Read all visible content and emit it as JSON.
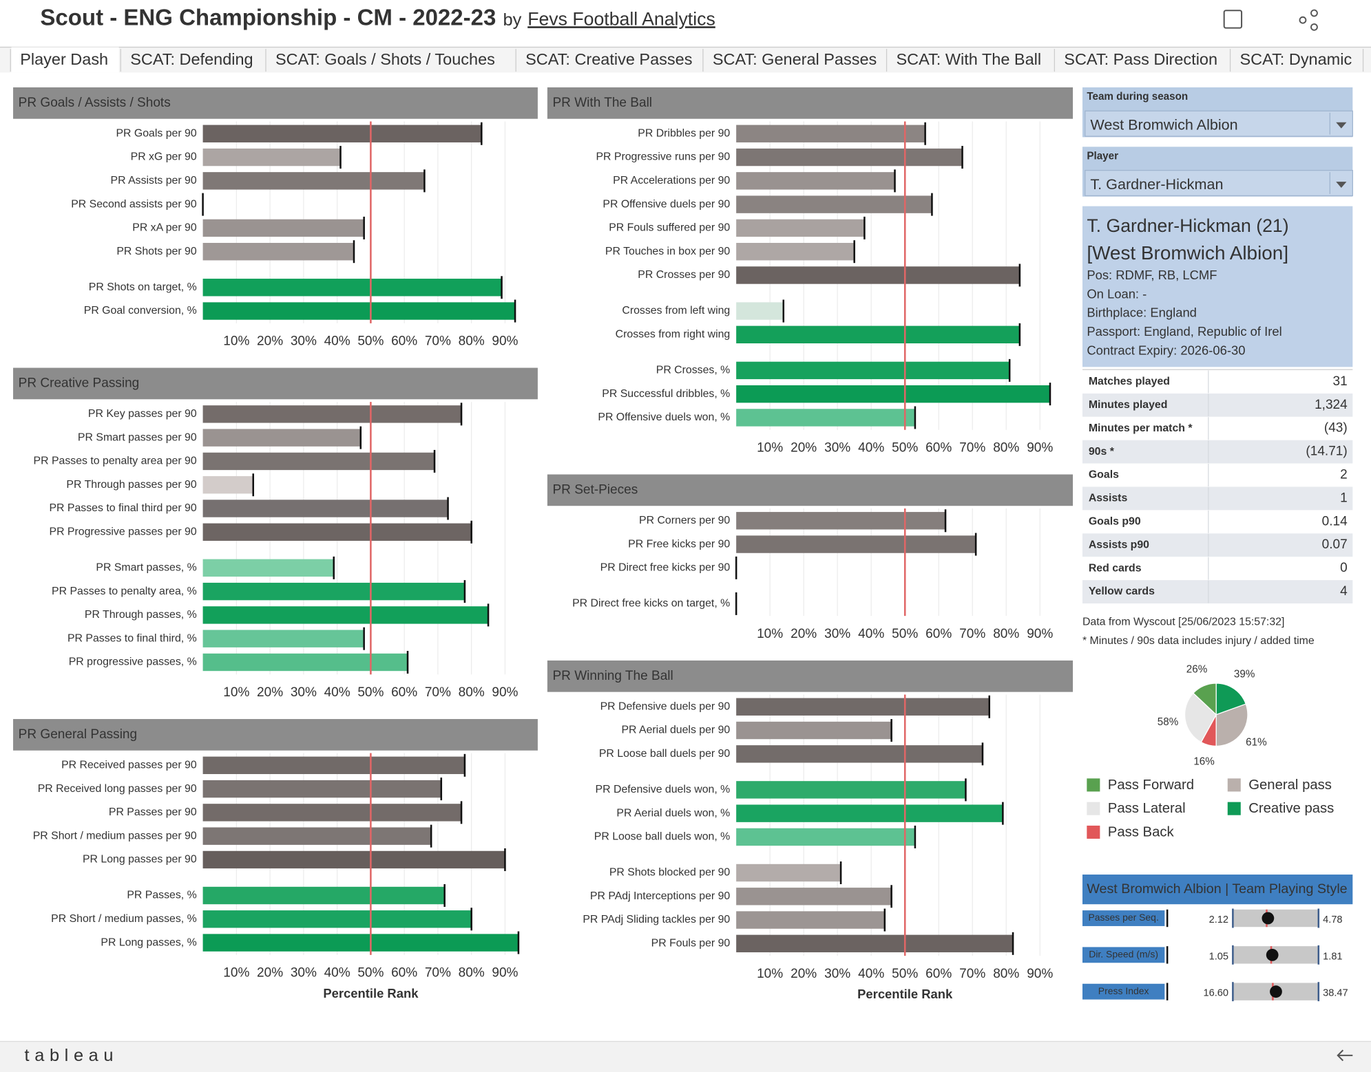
{
  "header": {
    "title": "Scout - ENG Championship - CM - 2022-23",
    "by": "by",
    "link": "Fevs Football Analytics"
  },
  "tabs": [
    "Player Dash",
    "SCAT: Defending",
    "SCAT: Goals / Shots / Touches",
    "SCAT: Creative Passes",
    "SCAT: General Passes",
    "SCAT: With The Ball",
    "SCAT: Pass Direction",
    "SCAT: Dynamic"
  ],
  "scale": {
    "xlim": [
      0,
      100
    ],
    "xticks": [
      {
        "value": 10,
        "label": "10%"
      },
      {
        "value": 20,
        "label": "20%"
      },
      {
        "value": 30,
        "label": "30%"
      },
      {
        "value": 40,
        "label": "40%"
      },
      {
        "value": 50,
        "label": "50%"
      },
      {
        "value": 60,
        "label": "60%"
      },
      {
        "value": 70,
        "label": "70%"
      },
      {
        "value": 80,
        "label": "80%"
      },
      {
        "value": 90,
        "label": "90%"
      }
    ],
    "reference_line": 50,
    "reference_color": "#e06666",
    "grid": true,
    "axis_title": "Percentile Rank"
  },
  "panels": [
    {
      "title": "PR Goals / Assists / Shots",
      "groups": [
        [
          {
            "label": "PR Goals per 90",
            "value": 83,
            "color": "#6b6361"
          },
          {
            "label": "PR xG per 90",
            "value": 41,
            "color": "#aca5a3"
          },
          {
            "label": "PR Assists per 90",
            "value": 66,
            "color": "#7f7876"
          },
          {
            "label": "PR Second assists per 90",
            "value": 0,
            "color": "#d0c9c7"
          },
          {
            "label": "PR xA per 90",
            "value": 48,
            "color": "#9a9391"
          },
          {
            "label": "PR Shots per 90",
            "value": 45,
            "color": "#9f9896"
          }
        ],
        [
          {
            "label": "PR Shots on target, %",
            "value": 89,
            "color": "#11a05a"
          },
          {
            "label": "PR Goal conversion, %",
            "value": 93,
            "color": "#0c9b55"
          }
        ]
      ]
    },
    {
      "title": "PR Creative Passing",
      "groups": [
        [
          {
            "label": "PR Key passes per 90",
            "value": 77,
            "color": "#746c6a"
          },
          {
            "label": "PR Smart passes per 90",
            "value": 47,
            "color": "#9a9391"
          },
          {
            "label": "PR Passes to penalty area per 90",
            "value": 69,
            "color": "#7a7371"
          },
          {
            "label": "PR Through passes per 90",
            "value": 15,
            "color": "#d3ccca"
          },
          {
            "label": "PR Passes to final third per 90",
            "value": 73,
            "color": "#767070"
          },
          {
            "label": "PR Progressive passes per 90",
            "value": 80,
            "color": "#6d6563"
          }
        ],
        [
          {
            "label": "PR Smart passes, %",
            "value": 39,
            "color": "#7ccfa6"
          },
          {
            "label": "PR Passes to penalty area, %",
            "value": 78,
            "color": "#1aa461"
          },
          {
            "label": "PR Through passes, %",
            "value": 85,
            "color": "#12a05a"
          },
          {
            "label": "PR Passes to final third, %",
            "value": 48,
            "color": "#66c598"
          },
          {
            "label": "PR progressive passes, %",
            "value": 61,
            "color": "#55be8b"
          }
        ]
      ]
    },
    {
      "title": "PR General Passing",
      "axis_title": true,
      "groups": [
        [
          {
            "label": "PR Received passes per 90",
            "value": 78,
            "color": "#716a68"
          },
          {
            "label": "PR Received long passes per 90",
            "value": 71,
            "color": "#7a7371"
          },
          {
            "label": "PR Passes per 90",
            "value": 77,
            "color": "#736b69"
          },
          {
            "label": "PR Short / medium passes per 90",
            "value": 68,
            "color": "#7d7674"
          },
          {
            "label": "PR Long passes per 90",
            "value": 90,
            "color": "#665e5c"
          }
        ],
        [
          {
            "label": "PR Passes, %",
            "value": 72,
            "color": "#25a866"
          },
          {
            "label": "PR Short / medium passes, %",
            "value": 80,
            "color": "#1aa461"
          },
          {
            "label": "PR Long passes, %",
            "value": 94,
            "color": "#0c9b55"
          }
        ]
      ]
    },
    {
      "title": "PR With The Ball",
      "groups": [
        [
          {
            "label": "PR Dribbles per 90",
            "value": 56,
            "color": "#8c8583"
          },
          {
            "label": "PR Progressive runs per 90",
            "value": 67,
            "color": "#7d7674"
          },
          {
            "label": "PR Accelerations per 90",
            "value": 47,
            "color": "#999290"
          },
          {
            "label": "PR Offensive duels per 90",
            "value": 58,
            "color": "#8a8381"
          },
          {
            "label": "PR Fouls suffered per 90",
            "value": 38,
            "color": "#a9a2a0"
          },
          {
            "label": "PR Touches in box per 90",
            "value": 35,
            "color": "#aea7a5"
          },
          {
            "label": "PR Crosses per 90",
            "value": 84,
            "color": "#6b6361"
          }
        ],
        [
          {
            "label": "Crosses from left wing",
            "value": 14,
            "color": "#d4e6dc"
          },
          {
            "label": "Crosses from right wing",
            "value": 84,
            "color": "#14a05a"
          }
        ],
        [
          {
            "label": "PR Crosses, %",
            "value": 81,
            "color": "#17a25d"
          },
          {
            "label": "PR Successful dribbles, %",
            "value": 93,
            "color": "#0c9b55"
          },
          {
            "label": "PR Offensive duels won, %",
            "value": 53,
            "color": "#5dc292"
          }
        ]
      ]
    },
    {
      "title": "PR Set-Pieces",
      "groups": [
        [
          {
            "label": "PR Corners per 90",
            "value": 62,
            "color": "#857e7c"
          },
          {
            "label": "PR Free kicks per 90",
            "value": 71,
            "color": "#7a7371"
          },
          {
            "label": "PR Direct free kicks per 90",
            "value": 0,
            "color": "#d0c9c7"
          }
        ],
        [
          {
            "label": "PR Direct free kicks on target, %",
            "value": 0,
            "color": "#d0c9c7"
          }
        ]
      ]
    },
    {
      "title": "PR Winning The Ball",
      "axis_title": true,
      "groups": [
        [
          {
            "label": "PR Defensive duels per 90",
            "value": 75,
            "color": "#716a68"
          },
          {
            "label": "PR Aerial duels per 90",
            "value": 46,
            "color": "#9a9391"
          },
          {
            "label": "PR Loose ball duels per 90",
            "value": 73,
            "color": "#736c6a"
          }
        ],
        [
          {
            "label": "PR Defensive duels won, %",
            "value": 68,
            "color": "#2eab6b"
          },
          {
            "label": "PR Aerial duels won, %",
            "value": 79,
            "color": "#1aa461"
          },
          {
            "label": "PR Loose ball duels won, %",
            "value": 53,
            "color": "#5dc292"
          }
        ],
        [
          {
            "label": "PR Shots blocked per 90",
            "value": 31,
            "color": "#b3acaa"
          },
          {
            "label": "PR PAdj Interceptions per 90",
            "value": 46,
            "color": "#9a9391"
          },
          {
            "label": "PR PAdj Sliding tackles per 90",
            "value": 44,
            "color": "#9c9593"
          },
          {
            "label": "PR Fouls per 90",
            "value": 82,
            "color": "#6b6361"
          }
        ]
      ]
    }
  ],
  "filters": [
    {
      "label": "Team during season",
      "value": "West Bromwich Albion"
    },
    {
      "label": "Player",
      "value": "T. Gardner-Hickman"
    }
  ],
  "player": {
    "name": "T. Gardner-Hickman (21)",
    "team": "[West Bromwich Albion]",
    "details": [
      {
        "label": "Pos:",
        "value": "RDMF, RB, LCMF"
      },
      {
        "label": "On Loan:",
        "value": "-"
      },
      {
        "label": "Birthplace:",
        "value": "England"
      },
      {
        "label": "Passport:",
        "value": "England, Republic of Irel"
      },
      {
        "label": "Contract Expiry:",
        "value": "2026-06-30"
      }
    ]
  },
  "stats": [
    {
      "label": "Matches played",
      "value": "31",
      "color": "#4a76b8"
    },
    {
      "label": "Minutes played",
      "value": "1,324",
      "color": "#4a76b8"
    },
    {
      "label": "Minutes per match *",
      "value": "(43)",
      "color": "#d9534f"
    },
    {
      "label": "90s *",
      "value": "(14.71)",
      "color": "#d9534f"
    },
    {
      "label": "Goals",
      "value": "2",
      "color": "#4a76b8"
    },
    {
      "label": "Assists",
      "value": "1",
      "color": "#4a76b8"
    },
    {
      "label": "Goals p90",
      "value": "0.14",
      "color": "#4a76b8"
    },
    {
      "label": "Assists p90",
      "value": "0.07",
      "color": "#4a76b8"
    },
    {
      "label": "Red cards",
      "value": "0",
      "color": "#4a76b8"
    },
    {
      "label": "Yellow cards",
      "value": "4",
      "color": "#4a76b8"
    }
  ],
  "notes": [
    "Data from Wyscout [25/06/2023 15:57:32]",
    "* Minutes / 90s data includes injury / added time"
  ],
  "pass_chart": {
    "type": "pie",
    "groups": [
      {
        "slices": [
          {
            "name": "Pass Back",
            "value": 16,
            "label": "16%",
            "color": "#e15759"
          },
          {
            "name": "Pass Lateral",
            "value": 58,
            "label": "58%",
            "color": "#e6e6e6"
          },
          {
            "name": "Pass Forward",
            "value": 26,
            "label": "26%",
            "color": "#59a14f"
          }
        ]
      },
      {
        "slices": [
          {
            "name": "Creative pass",
            "value": 39,
            "label": "39%",
            "color": "#0f9a56"
          },
          {
            "name": "General pass",
            "value": 61,
            "label": "61%",
            "color": "#bab0ac"
          }
        ]
      }
    ]
  },
  "team_style": {
    "title": "West Bromwich Albion | Team Playing Style",
    "metrics": [
      {
        "label": "Passes per Seq.",
        "range": [
          2.12,
          4.78
        ],
        "value": 3.21,
        "average": 3.17
      },
      {
        "label": "Dir. Speed (m/s)",
        "range": [
          1.05,
          1.81
        ],
        "value": 1.4,
        "average": 1.39
      },
      {
        "label": "Press Index",
        "range": [
          {
            "value": 16.6,
            "label": "16.60"
          },
          38.47
        ],
        "value": 27.6,
        "average": 26.8
      }
    ]
  },
  "footer": {
    "brand": "tableau"
  }
}
